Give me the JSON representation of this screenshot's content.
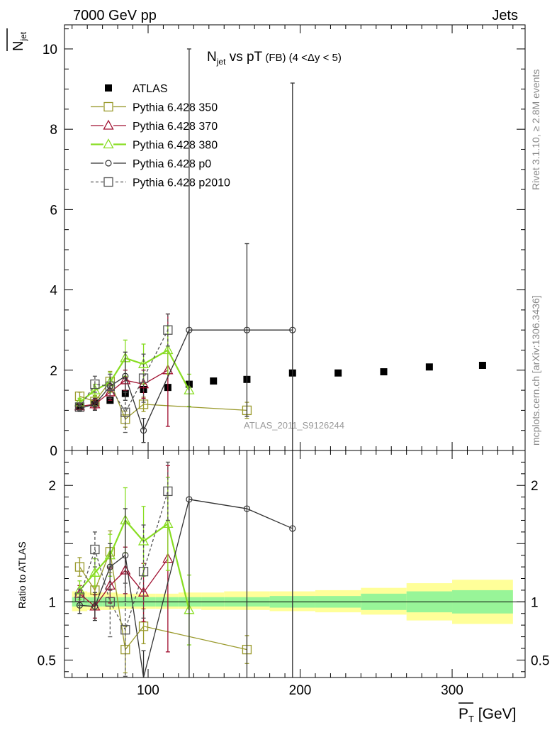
{
  "header": {
    "left": "7000 GeV pp",
    "right": "Jets"
  },
  "side_text": {
    "rivet": "Rivet 3.1.10, ≥ 2.8M events",
    "mcplots": "mcplots.cern.ch [arXiv:1306.3436]"
  },
  "watermark": "ATLAS_2011_S9126244",
  "chart_data": [
    {
      "type": "scatter",
      "title": "N_jet vs pT (FB) (4 < Δy < 5)",
      "ylabel": "N_jet (overlined)",
      "ylim": [
        0,
        10.6
      ],
      "xlim": [
        45,
        348
      ],
      "yticks": [
        0,
        2,
        4,
        6,
        8,
        10
      ],
      "legend_position": "top-left",
      "series": [
        {
          "name": "ATLAS",
          "color": "#000000",
          "marker": "filled-square",
          "x": [
            55,
            65,
            75,
            85,
            97,
            113,
            127,
            143,
            165,
            195,
            225,
            255,
            285,
            320
          ],
          "y": [
            1.1,
            1.18,
            1.25,
            1.42,
            1.52,
            1.57,
            1.65,
            1.73,
            1.77,
            1.93,
            1.93,
            1.96,
            2.08,
            2.12
          ]
        },
        {
          "name": "Pythia 6.428 350",
          "color": "#9a9a2c",
          "marker": "open-square",
          "x": [
            55,
            65,
            75,
            85,
            97,
            165
          ],
          "y": [
            1.35,
            1.22,
            1.72,
            0.78,
            1.15,
            1.0
          ],
          "err": [
            0.1,
            0.15,
            0.25,
            0.2,
            0.18,
            0.2
          ]
        },
        {
          "name": "Pythia 6.428 370",
          "color": "#a01030",
          "marker": "open-triangle",
          "x": [
            55,
            65,
            75,
            85,
            97,
            113
          ],
          "y": [
            1.1,
            1.15,
            1.45,
            1.75,
            1.65,
            2.0
          ],
          "err": [
            0.08,
            0.12,
            0.2,
            0.25,
            0.35,
            1.4
          ]
        },
        {
          "name": "Pythia 6.428 380",
          "color": "#88dd22",
          "marker": "open-triangle",
          "x": [
            55,
            65,
            75,
            85,
            97,
            113,
            127
          ],
          "y": [
            1.2,
            1.5,
            1.7,
            2.3,
            2.15,
            2.5,
            1.5
          ],
          "err": [
            0.1,
            0.15,
            0.25,
            0.45,
            0.5,
            0.6,
            0.4
          ]
        },
        {
          "name": "Pythia 6.428 p0",
          "color": "#333333",
          "marker": "open-circle",
          "x": [
            55,
            65,
            75,
            85,
            97,
            127,
            165,
            195
          ],
          "y": [
            1.05,
            1.15,
            1.6,
            1.85,
            0.5,
            3.0,
            3.0,
            3.0
          ],
          "err": [
            0.08,
            0.15,
            0.3,
            0.6,
            0.3,
            7.0,
            2.15,
            6.15
          ]
        },
        {
          "name": "Pythia 6.428 p2010",
          "color": "#555555",
          "marker": "open-square",
          "dashed": true,
          "x": [
            55,
            65,
            75,
            85,
            97,
            113
          ],
          "y": [
            1.08,
            1.65,
            1.6,
            0.95,
            1.8,
            3.0
          ],
          "err": [
            0.08,
            0.2,
            0.3,
            0.5,
            0.6,
            0.4
          ]
        }
      ]
    },
    {
      "type": "scatter",
      "ylabel": "Ratio to ATLAS",
      "xlabel": "P_T (overlined) [GeV]",
      "ylim": [
        0.35,
        2.3
      ],
      "xlim": [
        45,
        348
      ],
      "yticks": [
        0.5,
        1,
        1.5,
        2
      ],
      "ytick_labels": [
        "0.5",
        "1",
        "",
        "2"
      ],
      "xticks": [
        100,
        200,
        300
      ],
      "bands": {
        "edges": [
          50,
          60,
          70,
          80,
          90,
          105,
          120,
          135,
          150,
          180,
          210,
          240,
          270,
          300,
          340
        ],
        "yellow_low": [
          0.92,
          0.93,
          0.93,
          0.94,
          0.94,
          0.94,
          0.94,
          0.93,
          0.93,
          0.92,
          0.91,
          0.89,
          0.84,
          0.81,
          0.52
        ],
        "yellow_high": [
          1.09,
          1.08,
          1.08,
          1.07,
          1.07,
          1.07,
          1.08,
          1.08,
          1.09,
          1.09,
          1.1,
          1.12,
          1.16,
          1.19,
          1.57
        ],
        "green_low": [
          0.96,
          0.96,
          0.96,
          0.96,
          0.96,
          0.96,
          0.96,
          0.96,
          0.96,
          0.95,
          0.95,
          0.93,
          0.91,
          0.9,
          0.8
        ],
        "green_high": [
          1.04,
          1.04,
          1.04,
          1.04,
          1.04,
          1.04,
          1.04,
          1.04,
          1.04,
          1.05,
          1.05,
          1.07,
          1.09,
          1.1,
          1.28
        ]
      },
      "series": [
        {
          "name": "Pythia 6.428 350",
          "x": [
            55,
            65,
            75,
            85,
            97,
            165
          ],
          "y": [
            1.3,
            1.1,
            1.43,
            0.59,
            0.79,
            0.59
          ],
          "err": [
            0.08,
            0.12,
            0.18,
            0.2,
            0.15,
            0.12
          ]
        },
        {
          "name": "Pythia 6.428 370",
          "x": [
            55,
            65,
            75,
            85,
            97,
            113
          ],
          "y": [
            1.07,
            0.96,
            1.14,
            1.27,
            1.08,
            1.37
          ],
          "err": [
            0.07,
            0.1,
            0.15,
            0.2,
            0.25,
            0.8
          ]
        },
        {
          "name": "Pythia 6.428 380",
          "x": [
            55,
            65,
            75,
            85,
            97,
            113,
            127
          ],
          "y": [
            1.1,
            1.25,
            1.4,
            1.7,
            1.52,
            1.67,
            0.93
          ],
          "err": [
            0.08,
            0.12,
            0.18,
            0.28,
            0.3,
            0.4,
            0.3
          ]
        },
        {
          "name": "Pythia 6.428 p0",
          "x": [
            55,
            65,
            75,
            85,
            97,
            127,
            165,
            195
          ],
          "y": [
            0.97,
            0.96,
            1.3,
            1.4,
            0.33,
            1.88,
            1.8,
            1.63
          ],
          "err": [
            0.07,
            0.12,
            0.2,
            0.4,
            0.25,
            4.0,
            1.5,
            3.5
          ]
        },
        {
          "name": "Pythia 6.428 p2010",
          "x": [
            55,
            65,
            75,
            85,
            97,
            113
          ],
          "y": [
            1.04,
            1.45,
            1.0,
            0.76,
            1.26,
            1.95
          ],
          "err": [
            0.07,
            0.15,
            0.3,
            0.4,
            0.4,
            0.25
          ]
        }
      ]
    }
  ]
}
